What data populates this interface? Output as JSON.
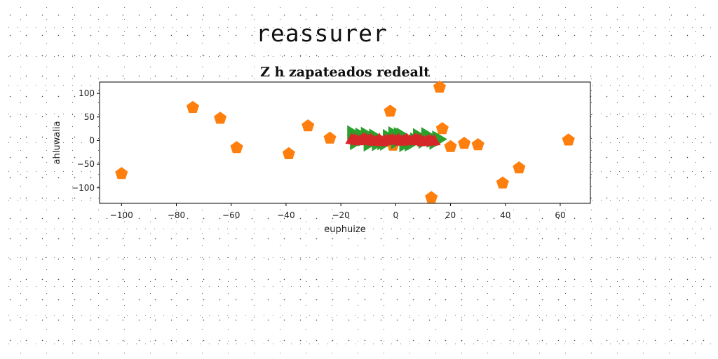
{
  "figure": {
    "title": "reassurer"
  },
  "chart_data": {
    "type": "scatter",
    "title": "Z h zapateados redealt",
    "xlabel": "euphuize",
    "ylabel": "ahluwalia",
    "xlim": [
      -108,
      71
    ],
    "ylim": [
      -133,
      124
    ],
    "xticks": [
      -100,
      -80,
      -60,
      -40,
      -20,
      0,
      20,
      40,
      60
    ],
    "yticks": [
      -100,
      -50,
      0,
      50,
      100
    ],
    "xtick_labels": [
      "−100",
      "−80",
      "−60",
      "−40",
      "−20",
      "0",
      "20",
      "40",
      "60"
    ],
    "ytick_labels": [
      "−100",
      "−50",
      "0",
      "50",
      "100"
    ],
    "grid": false,
    "series": [
      {
        "marker": "pentagon",
        "color": "#ff7f0e",
        "x": [
          -100,
          -74,
          -64,
          -58,
          -39,
          -32,
          -24,
          -2,
          -1,
          13,
          16,
          17,
          20,
          25,
          30,
          39,
          45,
          63
        ],
        "y": [
          -70,
          70,
          47,
          -15,
          -28,
          31,
          5,
          62,
          -10,
          -121,
          113,
          25,
          -13,
          -6,
          -9,
          -90,
          -58,
          1
        ]
      },
      {
        "marker": "triangle-right",
        "color": "#2ca02c",
        "x": [
          -16,
          -14,
          -12,
          -10,
          -8,
          -6,
          -4,
          -2,
          0,
          2,
          4,
          6,
          8,
          10,
          12,
          14,
          16,
          -15,
          -11,
          -7,
          -3,
          1,
          5,
          9,
          13,
          -13,
          -9,
          -5,
          -1,
          3,
          7,
          11,
          15
        ],
        "y": [
          17,
          8,
          3,
          -8,
          10,
          1,
          -6,
          4,
          -3,
          12,
          2,
          -5,
          11,
          -2,
          8,
          -4,
          3,
          -5,
          14,
          -7,
          9,
          13,
          -8,
          6,
          0,
          12,
          5,
          -5,
          15,
          -9,
          2,
          13,
          6
        ]
      },
      {
        "marker": "triangle-up",
        "color": "#d62728",
        "x": [
          -16,
          -14,
          -12,
          -10,
          -8,
          -6,
          -4,
          -2,
          0,
          2,
          4,
          6,
          8,
          10,
          12,
          14,
          -15,
          -11,
          -7,
          -3,
          1,
          5,
          9,
          13,
          -13,
          -9,
          -5,
          -1,
          3,
          7,
          11
        ],
        "y": [
          2,
          -1,
          3,
          0,
          -2,
          2,
          -1,
          1,
          0,
          -2,
          2,
          -1,
          1,
          -3,
          0,
          -1,
          1,
          3,
          -2,
          0,
          2,
          -1,
          1,
          -2,
          -1,
          2,
          -3,
          1,
          0,
          2,
          -2
        ]
      }
    ]
  }
}
